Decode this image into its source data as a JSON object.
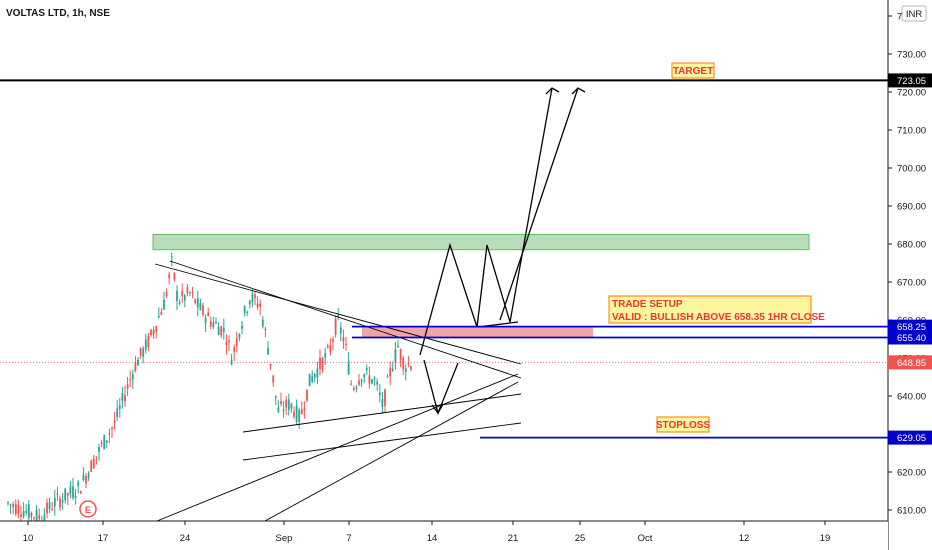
{
  "chart_data": {
    "type": "candlestick",
    "title": "VOLTAS LTD, 1h, NSE",
    "currency": "INR",
    "ylim": [
      605,
      738
    ],
    "y_ticks": [
      "610.00",
      "620.00",
      "630.00",
      "640.00",
      "650.00",
      "660.00",
      "670.00",
      "680.00",
      "690.00",
      "700.00",
      "710.00",
      "720.00",
      "730.00",
      "740.00"
    ],
    "x_ticks": [
      "10",
      "17",
      "24",
      "Sep",
      "7",
      "14",
      "21",
      "25",
      "Oct",
      "12",
      "19"
    ],
    "current_price": "648.85",
    "levels": [
      {
        "name": "target",
        "value": 723.05,
        "label": "723.05",
        "color": "#000000"
      },
      {
        "name": "resistance-1",
        "value": 658.25,
        "label": "658.25",
        "color": "#0000cc"
      },
      {
        "name": "resistance-2",
        "value": 655.4,
        "label": "655.40",
        "color": "#0000cc"
      },
      {
        "name": "stoploss",
        "value": 629.05,
        "label": "629.05",
        "color": "#0000cc"
      }
    ],
    "zones": [
      {
        "name": "supply-zone",
        "from": 678.5,
        "to": 682.5,
        "color": "#a5d6a7"
      },
      {
        "name": "entry-zone",
        "from": 655.5,
        "to": 658.0,
        "color": "#ef9a9a"
      }
    ],
    "annotations": {
      "target": "TARGET",
      "trade_setup_line1": "TRADE SETUP",
      "trade_setup_line2": "VALID : BULLISH ABOVE 658.35 1HR CLOSE",
      "stoploss": "STOPLOSS"
    },
    "event_marker": "E",
    "colors": {
      "up": "#26a69a",
      "down": "#ef5350",
      "current": "#ef5350",
      "level": "#0000cc",
      "zone_green": "#a5d6a7",
      "zone_red": "#ef9a9a",
      "axis_text": "#131722"
    }
  }
}
